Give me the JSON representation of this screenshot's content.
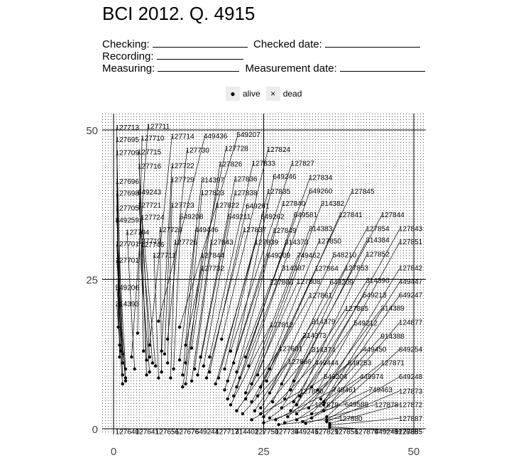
{
  "header": {
    "title": "BCI 2012. Q. 4915",
    "checking_label": "Checking:",
    "checked_date_label": "Checked date:",
    "recording_label": "Recording:",
    "measuring_label": "Measuring:",
    "measurement_date_label": "Measurement date:"
  },
  "legend": {
    "alive_symbol": "●",
    "alive_label": "alive",
    "dead_symbol": "×",
    "dead_label": "dead"
  },
  "chart_data": {
    "type": "scatter",
    "xlim": [
      0,
      50
    ],
    "ylim": [
      0,
      50
    ],
    "x_ticks": [
      0,
      25,
      50
    ],
    "y_ticks": [
      0,
      25,
      50
    ],
    "grid": true,
    "legend_position": "top",
    "series": [
      {
        "name": "alive",
        "marker": "dot"
      },
      {
        "name": "dead",
        "marker": "x"
      }
    ],
    "labeled_points": [
      {
        "tag": "127713",
        "lx": 0.3,
        "ly": 50.0,
        "x": 1.0,
        "y": 14.0
      },
      {
        "tag": "127711",
        "lx": 5.5,
        "ly": 50.2,
        "x": 3.0,
        "y": 12.0
      },
      {
        "tag": "127695",
        "lx": 0.3,
        "ly": 48.0,
        "x": 0.8,
        "y": 17.0
      },
      {
        "tag": "127710",
        "lx": 4.5,
        "ly": 48.2,
        "x": 4.0,
        "y": 16.0
      },
      {
        "tag": "127714",
        "lx": 9.5,
        "ly": 48.5,
        "x": 6.0,
        "y": 14.0
      },
      {
        "tag": "449436",
        "lx": 15.0,
        "ly": 48.6,
        "x": 7.5,
        "y": 18.0
      },
      {
        "tag": "549207",
        "lx": 20.5,
        "ly": 48.8,
        "x": 11.0,
        "y": 17.0
      },
      {
        "tag": "127709",
        "lx": 0.3,
        "ly": 45.8,
        "x": 1.5,
        "y": 12.5
      },
      {
        "tag": "127715",
        "lx": 4.0,
        "ly": 45.9,
        "x": 5.0,
        "y": 13.0
      },
      {
        "tag": "127730",
        "lx": 12.0,
        "ly": 46.2,
        "x": 9.0,
        "y": 15.0
      },
      {
        "tag": "127728",
        "lx": 18.5,
        "ly": 46.5,
        "x": 12.0,
        "y": 14.0
      },
      {
        "tag": "127824",
        "lx": 25.5,
        "ly": 46.3,
        "x": 18.0,
        "y": 15.0
      },
      {
        "tag": "127716",
        "lx": 4.0,
        "ly": 43.5,
        "x": 6.0,
        "y": 12.0
      },
      {
        "tag": "127722",
        "lx": 9.5,
        "ly": 43.6,
        "x": 8.0,
        "y": 13.0
      },
      {
        "tag": "127826",
        "lx": 17.5,
        "ly": 43.9,
        "x": 13.0,
        "y": 13.5
      },
      {
        "tag": "127833",
        "lx": 23.0,
        "ly": 44.0,
        "x": 16.0,
        "y": 12.0
      },
      {
        "tag": "127827",
        "lx": 29.5,
        "ly": 44.0,
        "x": 19.5,
        "y": 13.0
      },
      {
        "tag": "127696",
        "lx": 0.3,
        "ly": 41.0,
        "x": 1.2,
        "y": 13.0
      },
      {
        "tag": "127729",
        "lx": 9.5,
        "ly": 41.3,
        "x": 8.5,
        "y": 12.5
      },
      {
        "tag": "314397",
        "lx": 14.5,
        "ly": 41.2,
        "x": 11.0,
        "y": 11.5
      },
      {
        "tag": "127836",
        "lx": 20.0,
        "ly": 41.4,
        "x": 14.5,
        "y": 12.0
      },
      {
        "tag": "649246",
        "lx": 26.5,
        "ly": 41.8,
        "x": 20.0,
        "y": 11.0
      },
      {
        "tag": "127834",
        "lx": 32.5,
        "ly": 41.6,
        "x": 22.0,
        "y": 12.0
      },
      {
        "tag": "127698",
        "lx": 0.3,
        "ly": 39.0,
        "x": 1.0,
        "y": 12.0
      },
      {
        "tag": "649243",
        "lx": 4.0,
        "ly": 39.2,
        "x": 5.5,
        "y": 11.5
      },
      {
        "tag": "127823",
        "lx": 14.5,
        "ly": 39.1,
        "x": 12.0,
        "y": 11.0
      },
      {
        "tag": "127838",
        "lx": 20.0,
        "ly": 39.1,
        "x": 15.0,
        "y": 10.5
      },
      {
        "tag": "127835",
        "lx": 25.5,
        "ly": 39.3,
        "x": 18.5,
        "y": 10.0
      },
      {
        "tag": "649260",
        "lx": 32.5,
        "ly": 39.4,
        "x": 22.5,
        "y": 10.5
      },
      {
        "tag": "127845",
        "lx": 39.5,
        "ly": 39.3,
        "x": 26.0,
        "y": 10.0
      },
      {
        "tag": "127721",
        "lx": 4.0,
        "ly": 37.0,
        "x": 6.5,
        "y": 11.0
      },
      {
        "tag": "127723",
        "lx": 9.5,
        "ly": 37.0,
        "x": 9.0,
        "y": 11.0
      },
      {
        "tag": "127822",
        "lx": 17.0,
        "ly": 37.0,
        "x": 13.5,
        "y": 10.0
      },
      {
        "tag": "649261",
        "lx": 22.0,
        "ly": 36.9,
        "x": 16.0,
        "y": 9.5
      },
      {
        "tag": "127840",
        "lx": 28.0,
        "ly": 37.3,
        "x": 20.5,
        "y": 9.5
      },
      {
        "tag": "314382",
        "lx": 34.5,
        "ly": 37.3,
        "x": 24.0,
        "y": 9.0
      },
      {
        "tag": "127705",
        "lx": 0.3,
        "ly": 36.5,
        "x": 1.5,
        "y": 11.0
      },
      {
        "tag": "549208",
        "lx": 11.0,
        "ly": 35.1,
        "x": 10.0,
        "y": 10.0
      },
      {
        "tag": "549211",
        "lx": 19.0,
        "ly": 35.1,
        "x": 14.0,
        "y": 9.0
      },
      {
        "tag": "649262",
        "lx": 24.5,
        "ly": 35.1,
        "x": 17.5,
        "y": 8.5
      },
      {
        "tag": "649581",
        "lx": 30.0,
        "ly": 35.4,
        "x": 21.0,
        "y": 8.5
      },
      {
        "tag": "127841",
        "lx": 37.5,
        "ly": 35.4,
        "x": 25.5,
        "y": 8.0
      },
      {
        "tag": "127844",
        "lx": 44.5,
        "ly": 35.4,
        "x": 30.0,
        "y": 8.0
      },
      {
        "tag": "127724",
        "lx": 4.5,
        "ly": 35.0,
        "x": 7.0,
        "y": 10.5
      },
      {
        "tag": "849259",
        "lx": 0.3,
        "ly": 34.5,
        "x": 2.0,
        "y": 10.0
      },
      {
        "tag": "127704",
        "lx": 2.0,
        "ly": 32.5,
        "x": 3.5,
        "y": 10.0
      },
      {
        "tag": "127729",
        "lx": 7.5,
        "ly": 32.9,
        "x": 8.0,
        "y": 9.5
      },
      {
        "tag": "449446",
        "lx": 13.5,
        "ly": 32.9,
        "x": 11.5,
        "y": 9.0
      },
      {
        "tag": "127837",
        "lx": 21.5,
        "ly": 32.9,
        "x": 15.5,
        "y": 8.5
      },
      {
        "tag": "127849",
        "lx": 26.5,
        "ly": 32.8,
        "x": 19.0,
        "y": 8.0
      },
      {
        "tag": "314383",
        "lx": 32.5,
        "ly": 33.1,
        "x": 23.0,
        "y": 7.5
      },
      {
        "tag": "127854",
        "lx": 42.0,
        "ly": 33.1,
        "x": 28.0,
        "y": 7.5
      },
      {
        "tag": "127843",
        "lx": 47.5,
        "ly": 33.1,
        "x": 33.0,
        "y": 7.0
      },
      {
        "tag": "127719",
        "lx": 4.0,
        "ly": 31.0,
        "x": 6.0,
        "y": 9.5
      },
      {
        "tag": "127726",
        "lx": 10.0,
        "ly": 30.8,
        "x": 9.5,
        "y": 8.5
      },
      {
        "tag": "127843",
        "lx": 16.0,
        "ly": 30.8,
        "x": 13.0,
        "y": 8.0
      },
      {
        "tag": "127839",
        "lx": 23.5,
        "ly": 30.8,
        "x": 17.0,
        "y": 7.5
      },
      {
        "tag": "314373",
        "lx": 28.5,
        "ly": 30.8,
        "x": 20.5,
        "y": 7.0
      },
      {
        "tag": "127850",
        "lx": 34.0,
        "ly": 31.0,
        "x": 24.5,
        "y": 7.0
      },
      {
        "tag": "314384",
        "lx": 42.0,
        "ly": 31.2,
        "x": 29.5,
        "y": 6.5
      },
      {
        "tag": "127851",
        "lx": 47.5,
        "ly": 30.9,
        "x": 34.0,
        "y": 6.5
      },
      {
        "tag": "127701",
        "lx": 0.3,
        "ly": 30.5,
        "x": 1.5,
        "y": 9.0
      },
      {
        "tag": "127746",
        "lx": 4.5,
        "ly": 30.4,
        "x": 5.5,
        "y": 9.0
      },
      {
        "tag": "127711",
        "lx": 6.5,
        "ly": 28.6,
        "x": 7.5,
        "y": 8.5
      },
      {
        "tag": "127844",
        "lx": 14.5,
        "ly": 28.6,
        "x": 12.0,
        "y": 7.5
      },
      {
        "tag": "649209",
        "lx": 25.5,
        "ly": 28.6,
        "x": 18.5,
        "y": 6.5
      },
      {
        "tag": "749462",
        "lx": 30.5,
        "ly": 28.6,
        "x": 22.0,
        "y": 6.0
      },
      {
        "tag": "548210",
        "lx": 36.5,
        "ly": 28.7,
        "x": 26.0,
        "y": 6.0
      },
      {
        "tag": "127852",
        "lx": 42.0,
        "ly": 28.8,
        "x": 31.0,
        "y": 5.5
      },
      {
        "tag": "127701",
        "lx": 0.3,
        "ly": 27.8,
        "x": 2.0,
        "y": 8.5
      },
      {
        "tag": "127732",
        "lx": 14.5,
        "ly": 26.4,
        "x": 11.5,
        "y": 7.0
      },
      {
        "tag": "314387",
        "lx": 28.0,
        "ly": 26.5,
        "x": 20.0,
        "y": 5.5
      },
      {
        "tag": "127864",
        "lx": 33.5,
        "ly": 26.4,
        "x": 24.0,
        "y": 5.5
      },
      {
        "tag": "127853",
        "lx": 38.5,
        "ly": 26.5,
        "x": 28.5,
        "y": 5.0
      },
      {
        "tag": "127842",
        "lx": 47.5,
        "ly": 26.5,
        "x": 34.5,
        "y": 5.0
      },
      {
        "tag": "549206",
        "lx": 0.3,
        "ly": 23.2,
        "x": 2.0,
        "y": 8.0
      },
      {
        "tag": "127806",
        "lx": 26.0,
        "ly": 24.1,
        "x": 19.0,
        "y": 5.0
      },
      {
        "tag": "127808",
        "lx": 30.5,
        "ly": 24.2,
        "x": 22.0,
        "y": 5.0
      },
      {
        "tag": "649209",
        "lx": 36.0,
        "ly": 24.1,
        "x": 26.5,
        "y": 4.5
      },
      {
        "tag": "314390",
        "lx": 42.0,
        "ly": 24.4,
        "x": 30.0,
        "y": 4.5
      },
      {
        "tag": "449447",
        "lx": 47.5,
        "ly": 24.2,
        "x": 35.0,
        "y": 4.5
      },
      {
        "tag": "314393",
        "lx": 0.3,
        "ly": 20.5,
        "x": 1.5,
        "y": 7.5
      },
      {
        "tag": "127861",
        "lx": 32.5,
        "ly": 21.9,
        "x": 23.0,
        "y": 4.5
      },
      {
        "tag": "549213",
        "lx": 41.5,
        "ly": 22.0,
        "x": 30.5,
        "y": 4.0
      },
      {
        "tag": "649247",
        "lx": 47.5,
        "ly": 22.0,
        "x": 35.0,
        "y": 4.0
      },
      {
        "tag": "127865",
        "lx": 38.5,
        "ly": 19.7,
        "x": 28.0,
        "y": 3.5
      },
      {
        "tag": "314389",
        "lx": 44.5,
        "ly": 19.8,
        "x": 32.5,
        "y": 3.5
      },
      {
        "tag": "127812",
        "lx": 26.0,
        "ly": 17.0,
        "x": 19.5,
        "y": 4.0
      },
      {
        "tag": "314379",
        "lx": 33.0,
        "ly": 17.5,
        "x": 24.5,
        "y": 3.5
      },
      {
        "tag": "549212",
        "lx": 40.0,
        "ly": 17.3,
        "x": 29.5,
        "y": 3.0
      },
      {
        "tag": "124877",
        "lx": 47.5,
        "ly": 17.4,
        "x": 35.0,
        "y": 3.0
      },
      {
        "tag": "314373",
        "lx": 31.5,
        "ly": 15.2,
        "x": 23.5,
        "y": 3.0
      },
      {
        "tag": "914388",
        "lx": 44.5,
        "ly": 15.1,
        "x": 33.0,
        "y": 2.5
      },
      {
        "tag": "127601",
        "lx": 27.5,
        "ly": 13.0,
        "x": 20.5,
        "y": 3.0
      },
      {
        "tag": "314374",
        "lx": 33.0,
        "ly": 12.8,
        "x": 24.5,
        "y": 2.5
      },
      {
        "tag": "449450",
        "lx": 41.5,
        "ly": 12.9,
        "x": 30.5,
        "y": 2.5
      },
      {
        "tag": "849254",
        "lx": 47.5,
        "ly": 12.9,
        "x": 35.5,
        "y": 2.0
      },
      {
        "tag": "127866",
        "lx": 29.0,
        "ly": 10.8,
        "x": 21.5,
        "y": 2.5
      },
      {
        "tag": "449444",
        "lx": 33.5,
        "ly": 10.6,
        "x": 25.0,
        "y": 2.0
      },
      {
        "tag": "849253",
        "lx": 39.0,
        "ly": 10.6,
        "x": 29.0,
        "y": 2.0
      },
      {
        "tag": "127871",
        "lx": 44.5,
        "ly": 10.6,
        "x": 33.0,
        "y": 1.8
      },
      {
        "tag": "549204",
        "lx": 35.0,
        "ly": 8.3,
        "x": 26.0,
        "y": 1.8
      },
      {
        "tag": "449974",
        "lx": 41.0,
        "ly": 8.3,
        "x": 30.5,
        "y": 1.5
      },
      {
        "tag": "649248",
        "lx": 47.5,
        "ly": 8.3,
        "x": 35.5,
        "y": 1.5
      },
      {
        "tag": "127860",
        "lx": 31.0,
        "ly": 5.9,
        "x": 23.0,
        "y": 1.5
      },
      {
        "tag": "749461",
        "lx": 36.5,
        "ly": 6.1,
        "x": 27.0,
        "y": 1.5
      },
      {
        "tag": "749463",
        "lx": 42.5,
        "ly": 6.1,
        "x": 31.5,
        "y": 1.2
      },
      {
        "tag": "127873",
        "lx": 47.5,
        "ly": 5.9,
        "x": 35.5,
        "y": 1.2
      },
      {
        "tag": "127879",
        "lx": 33.5,
        "ly": 3.6,
        "x": 25.0,
        "y": 1.0
      },
      {
        "tag": "649589",
        "lx": 38.5,
        "ly": 3.7,
        "x": 28.5,
        "y": 1.0
      },
      {
        "tag": "127878",
        "lx": 43.5,
        "ly": 3.6,
        "x": 32.0,
        "y": 0.9
      },
      {
        "tag": "127872",
        "lx": 47.5,
        "ly": 3.6,
        "x": 36.0,
        "y": 0.9
      },
      {
        "tag": "127880",
        "lx": 37.5,
        "ly": 1.3,
        "x": 27.5,
        "y": 0.7
      },
      {
        "tag": "127887",
        "lx": 47.5,
        "ly": 1.3,
        "x": 36.0,
        "y": 0.6
      },
      {
        "tag": "127885",
        "lx": 47.5,
        "ly": -0.9,
        "x": 36.0,
        "y": 0.3
      }
    ],
    "bottom_labels": [
      "127640",
      "127641",
      "127656",
      "127676",
      "649244",
      "127717",
      "314402",
      "127750",
      "127739",
      "449246",
      "127829",
      "127856",
      "127879",
      "449248",
      "127885"
    ]
  }
}
